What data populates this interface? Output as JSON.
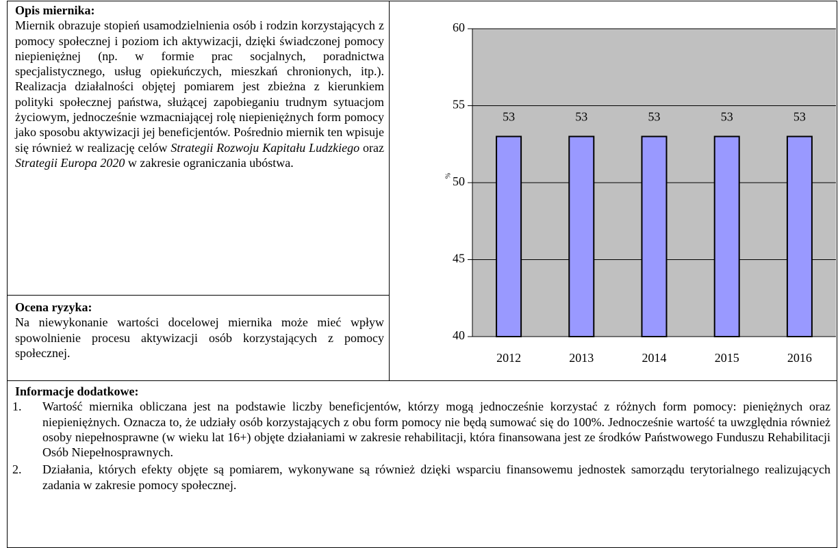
{
  "opis": {
    "heading": "Opis miernika:",
    "segments": [
      "Miernik obrazuje stopień usamodzielnienia osób i rodzin korzystających z pomocy społecznej i poziom ich aktywizacji, dzięki świadczonej pomocy niepieniężnej (np. w formie prac socjalnych, poradnictwa specjalistycznego, usług opiekuńczych, mieszkań chronionych, itp.). Realizacja działalności objętej pomiarem jest zbieżna z kierunkiem polityki społecznej państwa, służącej zapobieganiu trudnym sytuacjom życiowym, jednocześnie wzmacniającej rolę niepieniężnych form pomocy jako sposobu aktywizacji jej beneficjentów. Pośrednio miernik ten wpisuje się również w realizację celów ",
      "Strategii Rozwoju Kapitału Ludzkiego",
      " oraz ",
      "Strategii Europa 2020",
      " w zakresie ograniczania ubóstwa."
    ]
  },
  "ocena": {
    "heading": "Ocena ryzyka:",
    "text": "Na niewykonanie wartości docelowej miernika może mieć wpływ spowolnienie procesu aktywizacji osób korzystających z pomocy społecznej."
  },
  "informacje": {
    "heading": "Informacje dodatkowe:",
    "items": [
      {
        "number": "1.",
        "text": "Wartość miernika obliczana jest na podstawie liczby beneficjentów, którzy mogą jednocześnie korzystać z różnych form pomocy: pieniężnych oraz niepieniężnych. Oznacza to, że udziały osób korzystających z obu form pomocy nie będą sumować się do 100%. Jednocześnie wartość ta uwzględnia również osoby niepełnosprawne (w wieku lat 16+) objęte działaniami w zakresie rehabilitacji, która finansowana jest ze środków Państwowego Funduszu Rehabilitacji Osób Niepełnosprawnych."
      },
      {
        "number": "2.",
        "text": "Działania, których efekty objęte są pomiarem, wykonywane są również dzięki wsparciu finansowemu jednostek samorządu terytorialnego realizujących zadania w zakresie pomocy społecznej."
      }
    ]
  },
  "chart_data": {
    "type": "bar",
    "y_label": "%",
    "categories": [
      "2012",
      "2013",
      "2014",
      "2015",
      "2016"
    ],
    "values": [
      53,
      53,
      53,
      53,
      53
    ],
    "color": "#9999ff",
    "plot_background": "#c0c0c0",
    "ylim": [
      40,
      60
    ],
    "yticks": [
      40,
      45,
      50,
      55,
      60
    ],
    "grid": true,
    "data_labels": true
  }
}
